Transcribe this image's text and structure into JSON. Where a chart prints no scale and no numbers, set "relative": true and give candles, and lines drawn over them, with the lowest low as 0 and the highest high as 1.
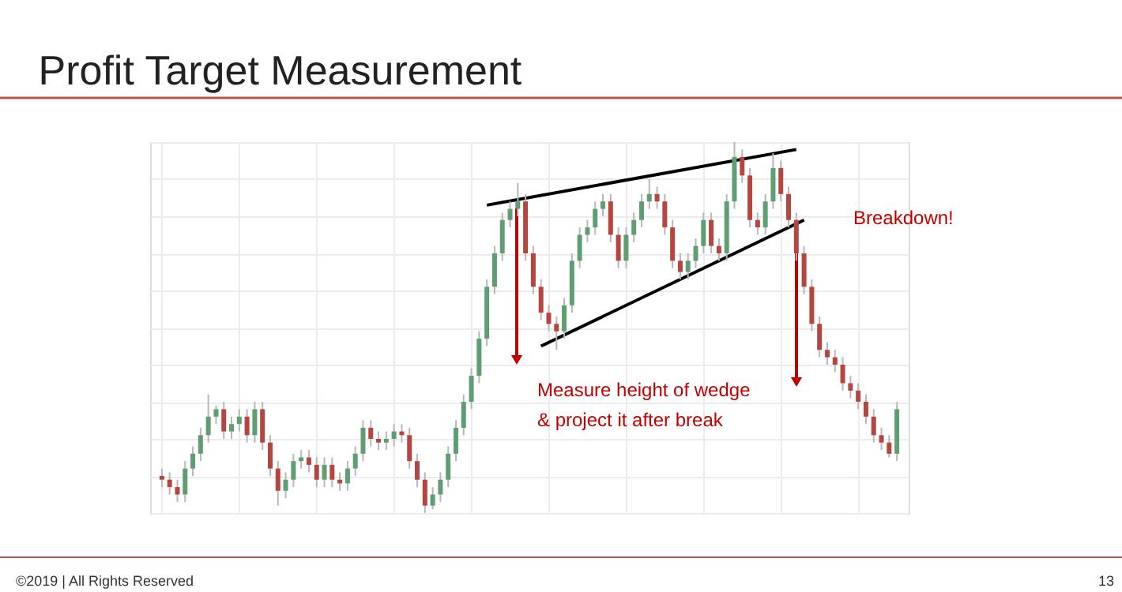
{
  "chart_data": {
    "type": "candlestick",
    "title": "Profit Target Measurement",
    "relative": true,
    "grid": true,
    "categories": [
      null,
      null,
      null,
      null,
      null,
      null,
      null,
      null,
      null,
      null,
      null,
      null,
      null,
      null,
      null,
      null,
      null,
      null,
      null,
      null,
      null,
      null,
      null,
      null,
      null,
      null,
      null,
      null,
      null,
      null,
      null,
      null,
      null,
      null,
      null,
      null,
      null,
      null,
      null,
      null,
      null,
      null,
      null,
      null,
      null,
      null,
      null,
      null,
      null,
      null,
      null,
      null,
      null,
      null,
      null,
      null,
      null,
      null,
      null,
      null,
      null,
      null,
      null,
      null,
      null,
      null,
      null,
      null,
      null,
      null,
      null,
      null,
      null,
      null,
      null,
      null,
      null,
      null,
      null,
      null,
      null,
      null,
      null,
      null,
      null,
      null,
      null,
      null,
      null,
      null,
      null,
      null,
      null,
      null,
      null,
      null
    ],
    "ohlc": [
      [
        0.1,
        0.12,
        0.07,
        0.09
      ],
      [
        0.09,
        0.11,
        0.05,
        0.07
      ],
      [
        0.07,
        0.09,
        0.03,
        0.05
      ],
      [
        0.05,
        0.14,
        0.03,
        0.12
      ],
      [
        0.12,
        0.18,
        0.1,
        0.16
      ],
      [
        0.16,
        0.23,
        0.14,
        0.21
      ],
      [
        0.21,
        0.32,
        0.19,
        0.26
      ],
      [
        0.26,
        0.29,
        0.24,
        0.28
      ],
      [
        0.28,
        0.3,
        0.2,
        0.22
      ],
      [
        0.22,
        0.26,
        0.2,
        0.24
      ],
      [
        0.24,
        0.28,
        0.22,
        0.26
      ],
      [
        0.26,
        0.28,
        0.19,
        0.21
      ],
      [
        0.21,
        0.3,
        0.19,
        0.28
      ],
      [
        0.28,
        0.3,
        0.17,
        0.19
      ],
      [
        0.19,
        0.21,
        0.1,
        0.12
      ],
      [
        0.12,
        0.14,
        0.02,
        0.06
      ],
      [
        0.06,
        0.11,
        0.04,
        0.09
      ],
      [
        0.09,
        0.16,
        0.07,
        0.14
      ],
      [
        0.14,
        0.17,
        0.12,
        0.15
      ],
      [
        0.15,
        0.17,
        0.11,
        0.13
      ],
      [
        0.13,
        0.15,
        0.07,
        0.09
      ],
      [
        0.09,
        0.15,
        0.07,
        0.13
      ],
      [
        0.13,
        0.15,
        0.07,
        0.09
      ],
      [
        0.09,
        0.11,
        0.06,
        0.08
      ],
      [
        0.08,
        0.14,
        0.06,
        0.12
      ],
      [
        0.12,
        0.18,
        0.1,
        0.16
      ],
      [
        0.16,
        0.25,
        0.14,
        0.23
      ],
      [
        0.23,
        0.25,
        0.18,
        0.2
      ],
      [
        0.2,
        0.22,
        0.17,
        0.19
      ],
      [
        0.19,
        0.22,
        0.17,
        0.2
      ],
      [
        0.2,
        0.24,
        0.18,
        0.22
      ],
      [
        0.22,
        0.24,
        0.19,
        0.21
      ],
      [
        0.21,
        0.23,
        0.12,
        0.14
      ],
      [
        0.14,
        0.16,
        0.07,
        0.09
      ],
      [
        0.09,
        0.11,
        0.0,
        0.02
      ],
      [
        0.02,
        0.07,
        0.01,
        0.05
      ],
      [
        0.05,
        0.11,
        0.03,
        0.09
      ],
      [
        0.09,
        0.18,
        0.07,
        0.16
      ],
      [
        0.16,
        0.25,
        0.14,
        0.23
      ],
      [
        0.23,
        0.32,
        0.21,
        0.3
      ],
      [
        0.3,
        0.39,
        0.28,
        0.37
      ],
      [
        0.37,
        0.49,
        0.35,
        0.47
      ],
      [
        0.47,
        0.63,
        0.45,
        0.61
      ],
      [
        0.61,
        0.72,
        0.59,
        0.7
      ],
      [
        0.7,
        0.81,
        0.68,
        0.79
      ],
      [
        0.79,
        0.84,
        0.77,
        0.82
      ],
      [
        0.82,
        0.89,
        0.8,
        0.84
      ],
      [
        0.84,
        0.86,
        0.68,
        0.7
      ],
      [
        0.7,
        0.72,
        0.59,
        0.61
      ],
      [
        0.61,
        0.63,
        0.52,
        0.54
      ],
      [
        0.54,
        0.56,
        0.49,
        0.51
      ],
      [
        0.51,
        0.53,
        0.44,
        0.49
      ],
      [
        0.49,
        0.58,
        0.47,
        0.56
      ],
      [
        0.56,
        0.7,
        0.54,
        0.68
      ],
      [
        0.68,
        0.77,
        0.66,
        0.75
      ],
      [
        0.75,
        0.79,
        0.73,
        0.77
      ],
      [
        0.77,
        0.84,
        0.75,
        0.82
      ],
      [
        0.82,
        0.86,
        0.8,
        0.84
      ],
      [
        0.84,
        0.86,
        0.73,
        0.75
      ],
      [
        0.75,
        0.77,
        0.66,
        0.68
      ],
      [
        0.68,
        0.77,
        0.66,
        0.75
      ],
      [
        0.75,
        0.81,
        0.73,
        0.79
      ],
      [
        0.79,
        0.86,
        0.77,
        0.84
      ],
      [
        0.84,
        0.9,
        0.82,
        0.86
      ],
      [
        0.86,
        0.88,
        0.82,
        0.84
      ],
      [
        0.84,
        0.86,
        0.75,
        0.77
      ],
      [
        0.77,
        0.79,
        0.66,
        0.68
      ],
      [
        0.68,
        0.7,
        0.63,
        0.65
      ],
      [
        0.65,
        0.7,
        0.63,
        0.68
      ],
      [
        0.68,
        0.74,
        0.66,
        0.72
      ],
      [
        0.72,
        0.81,
        0.7,
        0.79
      ],
      [
        0.79,
        0.81,
        0.7,
        0.72
      ],
      [
        0.72,
        0.74,
        0.68,
        0.7
      ],
      [
        0.7,
        0.86,
        0.68,
        0.84
      ],
      [
        0.84,
        1.0,
        0.82,
        0.96
      ],
      [
        0.96,
        0.98,
        0.89,
        0.91
      ],
      [
        0.91,
        0.93,
        0.77,
        0.79
      ],
      [
        0.79,
        0.81,
        0.75,
        0.77
      ],
      [
        0.77,
        0.86,
        0.75,
        0.84
      ],
      [
        0.84,
        0.97,
        0.82,
        0.93
      ],
      [
        0.93,
        0.95,
        0.84,
        0.86
      ],
      [
        0.86,
        0.88,
        0.77,
        0.79
      ],
      [
        0.79,
        0.81,
        0.68,
        0.7
      ],
      [
        0.7,
        0.72,
        0.59,
        0.61
      ],
      [
        0.61,
        0.63,
        0.49,
        0.51
      ],
      [
        0.51,
        0.53,
        0.42,
        0.44
      ],
      [
        0.44,
        0.46,
        0.4,
        0.42
      ],
      [
        0.42,
        0.44,
        0.38,
        0.4
      ],
      [
        0.4,
        0.42,
        0.33,
        0.35
      ],
      [
        0.35,
        0.37,
        0.31,
        0.33
      ],
      [
        0.33,
        0.35,
        0.28,
        0.3
      ],
      [
        0.3,
        0.32,
        0.24,
        0.26
      ],
      [
        0.26,
        0.28,
        0.19,
        0.21
      ],
      [
        0.21,
        0.23,
        0.17,
        0.19
      ],
      [
        0.19,
        0.21,
        0.15,
        0.16
      ],
      [
        0.16,
        0.3,
        0.14,
        0.28
      ]
    ],
    "series": [
      {
        "type": "line",
        "color": "#000000",
        "values": [
          null,
          null,
          null,
          null,
          null,
          null,
          null,
          null,
          null,
          null,
          null,
          null,
          null,
          null,
          null,
          null,
          null,
          null,
          null,
          null,
          null,
          null,
          null,
          null,
          null,
          null,
          null,
          null,
          null,
          null,
          null,
          null,
          null,
          null,
          null,
          null,
          null,
          null,
          null,
          null,
          null,
          null,
          0.83,
          null,
          null,
          null,
          null,
          null,
          null,
          null,
          null,
          null,
          null,
          null,
          null,
          null,
          null,
          null,
          null,
          null,
          null,
          null,
          null,
          null,
          null,
          null,
          null,
          null,
          null,
          null,
          null,
          null,
          null,
          null,
          null,
          null,
          null,
          null,
          null,
          null,
          null,
          null,
          0.98,
          null,
          null,
          null,
          null,
          null,
          null,
          null,
          null,
          null,
          null,
          null,
          null,
          null
        ]
      },
      {
        "type": "line",
        "color": "#000000",
        "values": [
          null,
          null,
          null,
          null,
          null,
          null,
          null,
          null,
          null,
          null,
          null,
          null,
          null,
          null,
          null,
          null,
          null,
          null,
          null,
          null,
          null,
          null,
          null,
          null,
          null,
          null,
          null,
          null,
          null,
          null,
          null,
          null,
          null,
          null,
          null,
          null,
          null,
          null,
          null,
          null,
          null,
          null,
          null,
          null,
          null,
          null,
          null,
          null,
          null,
          0.45,
          null,
          null,
          null,
          null,
          null,
          null,
          null,
          null,
          null,
          null,
          null,
          null,
          null,
          null,
          null,
          null,
          null,
          null,
          null,
          null,
          null,
          null,
          null,
          null,
          null,
          null,
          null,
          null,
          null,
          null,
          null,
          null,
          null,
          0.79,
          null,
          null,
          null,
          null,
          null,
          null,
          null,
          null,
          null,
          null,
          null,
          null
        ]
      }
    ],
    "annotations": [
      "Breakdown!",
      "Measure height of wedge",
      "& project it after break",
      "©2019 | All Rights Reserved",
      "13"
    ]
  }
}
